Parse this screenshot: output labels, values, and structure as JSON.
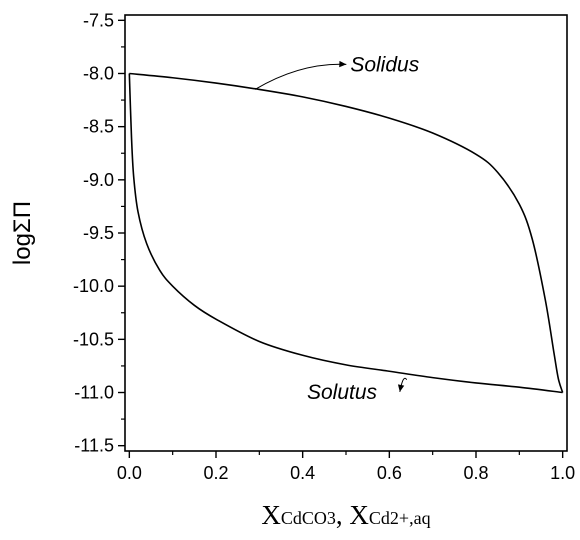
{
  "chart_data": {
    "type": "line",
    "title": "",
    "ylabel": "logΣΠ",
    "xlabel": {
      "part1_main": "X",
      "part1_sub": "CdCO3",
      "separator": ", ",
      "part2_main": "X",
      "part2_sub": "Cd2+,aq"
    },
    "xlim": [
      -0.01,
      1.01
    ],
    "ylim": [
      -11.55,
      -7.45
    ],
    "x_ticks": [
      0.0,
      0.2,
      0.4,
      0.6,
      0.8,
      1.0
    ],
    "x_tick_labels": [
      "0.0",
      "0.2",
      "0.4",
      "0.6",
      "0.8",
      "1.0"
    ],
    "y_ticks": [
      -7.5,
      -8.0,
      -8.5,
      -9.0,
      -9.5,
      -10.0,
      -10.5,
      -11.0,
      -11.5
    ],
    "y_tick_labels": [
      "-7.5",
      "-8.0",
      "-8.5",
      "-9.0",
      "-9.5",
      "-10.0",
      "-10.5",
      "-11.0",
      "-11.5"
    ],
    "grid": false,
    "legend": "none",
    "series": [
      {
        "name": "Solidus",
        "x": [
          0.0,
          0.1,
          0.2,
          0.3,
          0.4,
          0.5,
          0.6,
          0.7,
          0.8,
          0.85,
          0.9,
          0.93,
          0.96,
          0.98,
          0.99,
          1.0
        ],
        "y": [
          -8.0,
          -8.04,
          -8.09,
          -8.15,
          -8.22,
          -8.31,
          -8.42,
          -8.56,
          -8.76,
          -8.93,
          -9.23,
          -9.56,
          -10.13,
          -10.63,
          -10.87,
          -11.0
        ]
      },
      {
        "name": "Solutus",
        "x": [
          0.0,
          0.005,
          0.01,
          0.02,
          0.04,
          0.07,
          0.1,
          0.15,
          0.2,
          0.3,
          0.4,
          0.5,
          0.6,
          0.7,
          0.8,
          0.9,
          1.0
        ],
        "y": [
          -8.0,
          -8.6,
          -8.97,
          -9.3,
          -9.6,
          -9.85,
          -10.0,
          -10.18,
          -10.31,
          -10.52,
          -10.65,
          -10.74,
          -10.8,
          -10.86,
          -10.91,
          -10.95,
          -11.0
        ]
      }
    ],
    "annotations": [
      {
        "text": "Solidus",
        "x": 0.51,
        "y": -7.98,
        "arrow_to_x": 0.29,
        "arrow_to_y": -8.15
      },
      {
        "text": "Solutus",
        "x": 0.41,
        "y": -11.06,
        "arrow_to_x": 0.64,
        "arrow_to_y": -10.88
      }
    ]
  }
}
